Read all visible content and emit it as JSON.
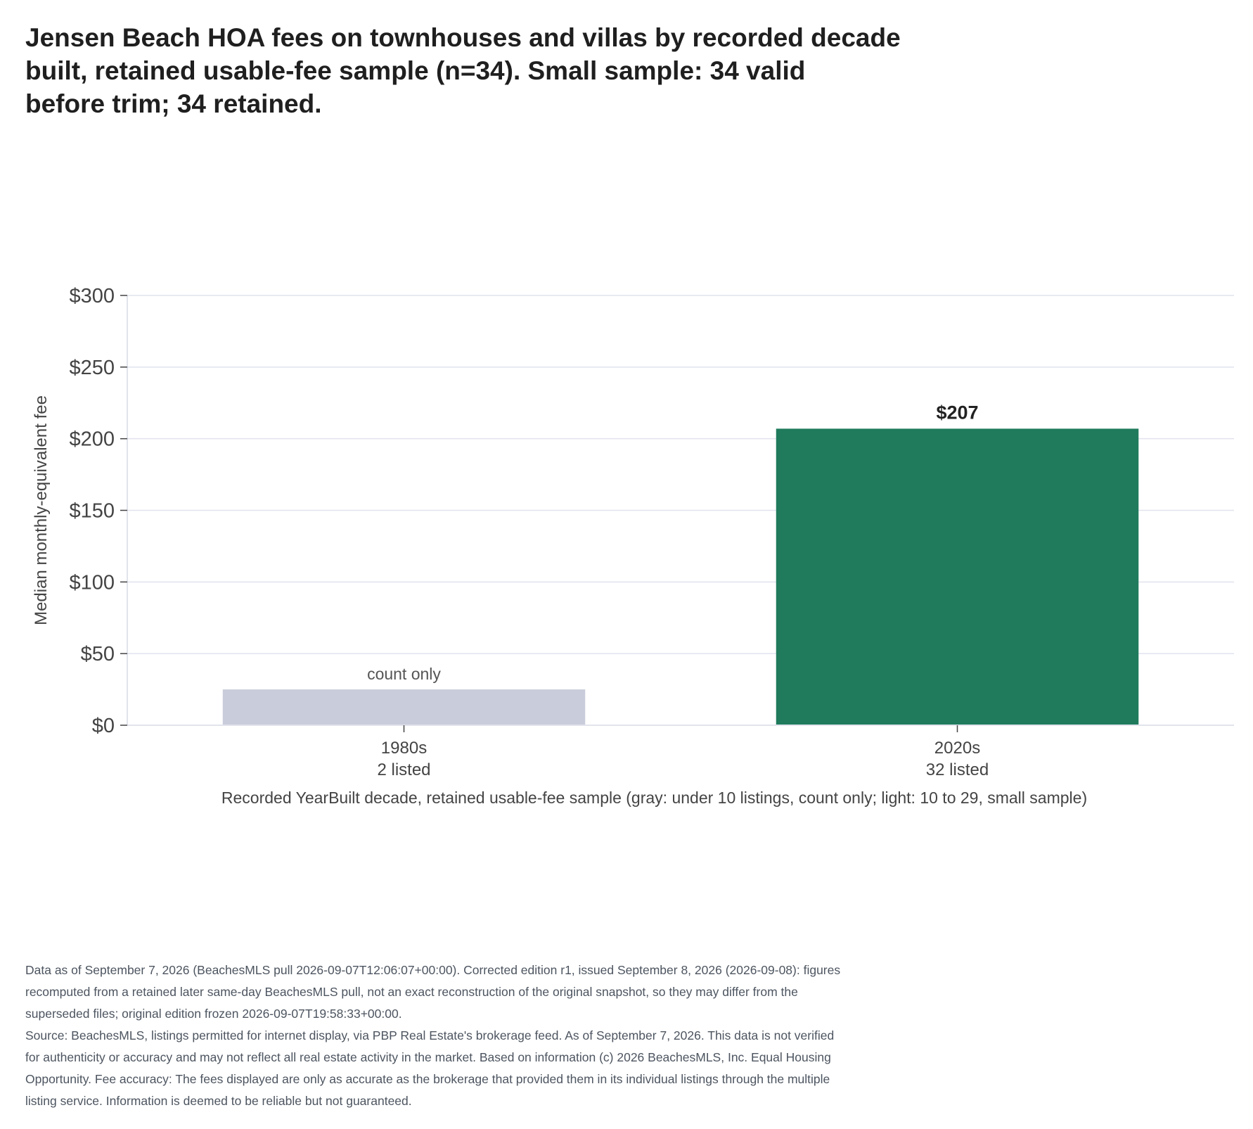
{
  "title_lines": [
    "Jensen Beach HOA fees on townhouses and villas by recorded decade",
    "built, retained usable-fee sample (n=34). Small sample: 34 valid",
    "before trim; 34 retained."
  ],
  "chart_data": {
    "type": "bar",
    "categories": [
      "1980s",
      "2020s"
    ],
    "category_counts": [
      "2 listed",
      "32 listed"
    ],
    "values": [
      null,
      207
    ],
    "count_only_placeholder_value": 25,
    "bar_labels": [
      "count only",
      "$207"
    ],
    "bar_colors": [
      "#c9ccda",
      "#1f7b5c"
    ],
    "xlabel": "Recorded YearBuilt decade, retained usable-fee sample (gray: under 10 listings, count only; light: 10 to 29, small sample)",
    "ylabel": "Median monthly-equivalent fee",
    "ylim": [
      0,
      300
    ],
    "yticks": [
      0,
      50,
      100,
      150,
      200,
      250,
      300
    ],
    "ytick_labels": [
      "$0",
      "$50",
      "$100",
      "$150",
      "$200",
      "$250",
      "$300"
    ],
    "grid": true,
    "legend": "none"
  },
  "footnote_lines": [
    "Data as of September 7, 2026 (BeachesMLS pull 2026-09-07T12:06:07+00:00). Corrected edition r1, issued September 8, 2026 (2026-09-08): figures",
    "recomputed from a retained later same-day BeachesMLS pull, not an exact reconstruction of the original snapshot, so they may differ from the",
    "superseded files; original edition frozen 2026-09-07T19:58:33+00:00.",
    "Source: BeachesMLS, listings permitted for internet display, via PBP Real Estate's brokerage feed. As of September 7, 2026. This data is not verified",
    "for authenticity or accuracy and may not reflect all real estate activity in the market. Based on information (c) 2026 BeachesMLS, Inc. Equal Housing",
    "Opportunity. Fee accuracy: The fees displayed are only as accurate as the brokerage that provided them in its individual listings through the multiple",
    "listing service. Information is deemed to be reliable but not guaranteed."
  ]
}
